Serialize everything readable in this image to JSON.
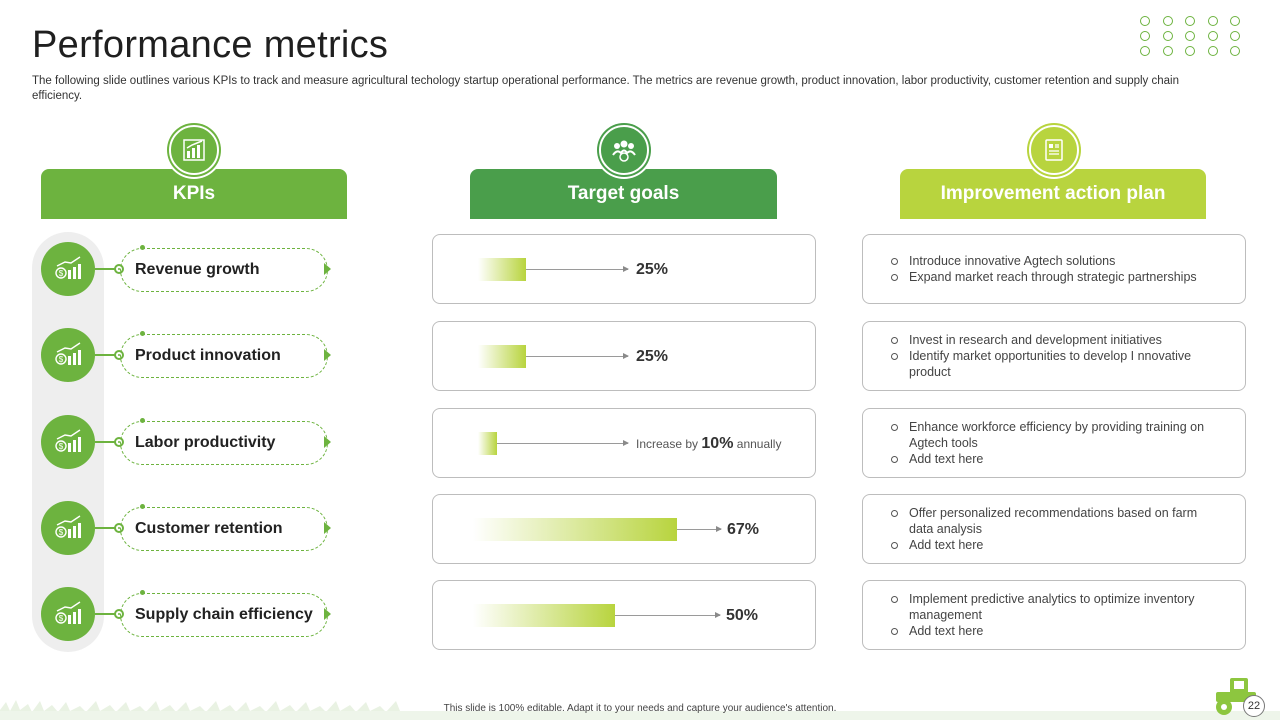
{
  "header": {
    "title": "Performance metrics",
    "subtitle": "The following slide outlines various KPIs to track and measure agricultural techology startup operational performance. The metrics are revenue growth, product innovation, labor productivity,  customer retention and supply chain efficiency."
  },
  "columns": {
    "kpis": "KPIs",
    "goals": "Target goals",
    "plan": "Improvement action plan"
  },
  "colors": {
    "green": "#6db33f",
    "dark_green": "#4a9e4b",
    "light_green": "#b8d43e"
  },
  "kpis": [
    "Revenue growth",
    "Product innovation",
    "Labor productivity",
    "Customer retention",
    "Supply chain efficiency"
  ],
  "goals": [
    {
      "value": "25%"
    },
    {
      "value": "25%"
    },
    {
      "prefix": "Increase by",
      "value": "10%",
      "suffix": "annually"
    },
    {
      "value": "67%"
    },
    {
      "value": "50%"
    }
  ],
  "plans": [
    [
      "Introduce innovative  Agtech solutions",
      "Expand market reach through strategic partnerships"
    ],
    [
      "Invest  in research and development  initiatives",
      "Identify market opportunities to develop  I nnovative  product"
    ],
    [
      "Enhance workforce efficiency by providing training on Agtech tools",
      "Add text here"
    ],
    [
      "Offer personalized recommendations based on farm data analysis",
      "Add text here"
    ],
    [
      "Implement  predictive analytics to optimize inventory management",
      "Add text here"
    ]
  ],
  "footer": "This slide is 100% editable. Adapt it to your needs and capture your audience's attention.",
  "page_number": "22",
  "icons": [
    "bar-chart-icon",
    "team-icon",
    "document-icon",
    "money-growth-icon",
    "tractor-icon"
  ]
}
